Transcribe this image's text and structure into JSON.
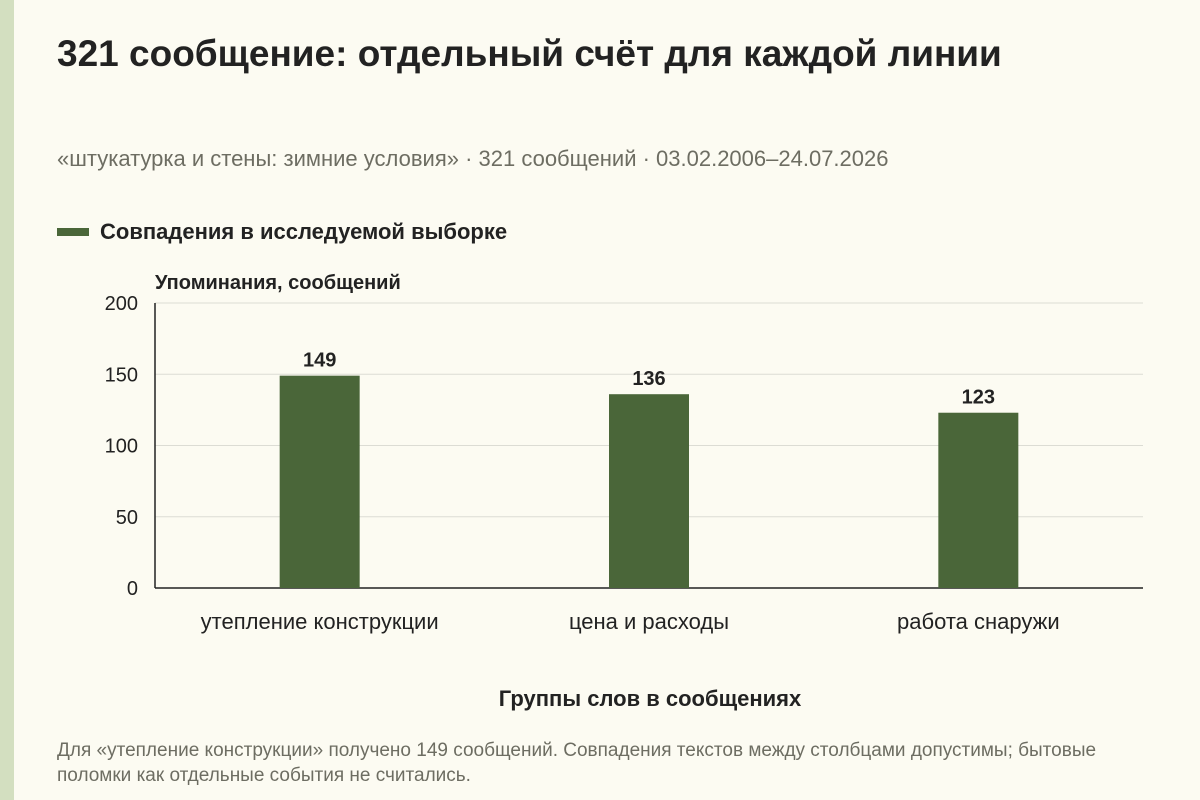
{
  "title": "321 сообщение: отдельный счёт для каждой линии",
  "subtitle": "«штукатурка и стены: зимние условия» · 321 сообщений · 03.02.2006–24.07.2026",
  "footnote": "Для «утепление конструкции» получено 149 сообщений. Совпадения текстов между столбцами допустимы; бытовые поломки как отдельные события не считались.",
  "colors": {
    "background": "#fcfbf2",
    "accent_strip": "#d3dfc0",
    "bar": "#4a6639",
    "grid": "#dcdcd4",
    "axis": "#222222",
    "muted_text": "#6d6d62"
  },
  "chart_data": {
    "type": "bar",
    "title": "321 сообщение: отдельный счёт для каждой линии",
    "subtitle": "«штукатурка и стены: зимние условия» · 321 сообщений · 03.02.2006–24.07.2026",
    "xlabel": "Группы слов в сообщениях",
    "ylabel": "Упоминания, сообщений",
    "categories": [
      "утепление конструкции",
      "цена и расходы",
      "работа снаружи"
    ],
    "series": [
      {
        "name": "Совпадения в исследуемой выборке",
        "values": [
          149,
          136,
          123
        ]
      }
    ],
    "ylim": [
      0,
      200
    ],
    "yticks": [
      0,
      50,
      100,
      150,
      200
    ],
    "grid": true,
    "legend": "top-left",
    "data_labels": true
  }
}
